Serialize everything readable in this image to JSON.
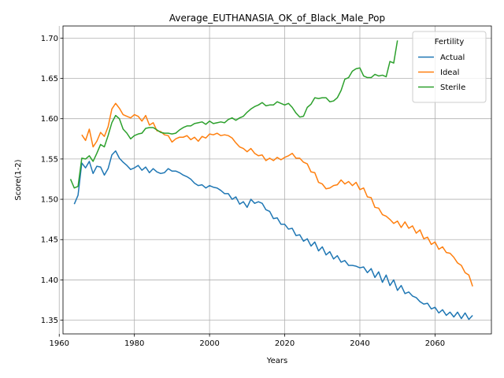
{
  "chart_data": {
    "type": "line",
    "title": "Average_EUTHANASIA_OK_of_Black_Male_Pop",
    "xlabel": "Years",
    "ylabel": "Score(1-2)",
    "xlim": [
      1961,
      2075
    ],
    "ylim": [
      1.333,
      1.715
    ],
    "xticks": [
      1960,
      1980,
      2000,
      2020,
      2040,
      2060
    ],
    "yticks": [
      1.35,
      1.4,
      1.45,
      1.5,
      1.55,
      1.6,
      1.65,
      1.7
    ],
    "grid": true,
    "legend": {
      "title": "Fertility",
      "placement": "top-right"
    },
    "series": [
      {
        "name": "Actual",
        "color": "#1f77b4",
        "x": [
          1964,
          1965,
          1966,
          1967,
          1968,
          1969,
          1970,
          1971,
          1972,
          1973,
          1974,
          1975,
          1976,
          1977,
          1978,
          1979,
          1980,
          1981,
          1982,
          1983,
          1984,
          1985,
          1986,
          1987,
          1988,
          1989,
          1990,
          1991,
          1992,
          1993,
          1994,
          1995,
          1996,
          1997,
          1998,
          1999,
          2000,
          2001,
          2002,
          2003,
          2004,
          2005,
          2006,
          2007,
          2008,
          2009,
          2010,
          2011,
          2012,
          2013,
          2014,
          2015,
          2016,
          2017,
          2018,
          2019,
          2020,
          2021,
          2022,
          2023,
          2024,
          2025,
          2026,
          2027,
          2028,
          2029,
          2030,
          2031,
          2032,
          2033,
          2034,
          2035,
          2036,
          2037,
          2038,
          2039,
          2040,
          2041,
          2042,
          2043,
          2044,
          2045,
          2046,
          2047,
          2048,
          2049,
          2050,
          2051,
          2052,
          2053,
          2054,
          2055,
          2056,
          2057,
          2058,
          2059,
          2060,
          2061,
          2062,
          2063,
          2064,
          2065,
          2066,
          2067,
          2068,
          2069,
          2070
        ],
        "values": [
          1.494,
          1.505,
          1.545,
          1.539,
          1.547,
          1.532,
          1.541,
          1.54,
          1.53,
          1.538,
          1.555,
          1.56,
          1.551,
          1.546,
          1.542,
          1.537,
          1.539,
          1.542,
          1.536,
          1.54,
          1.533,
          1.538,
          1.534,
          1.532,
          1.533,
          1.538,
          1.535,
          1.535,
          1.533,
          1.53,
          1.528,
          1.525,
          1.52,
          1.517,
          1.518,
          1.514,
          1.517,
          1.515,
          1.514,
          1.511,
          1.507,
          1.507,
          1.5,
          1.503,
          1.494,
          1.497,
          1.49,
          1.5,
          1.495,
          1.497,
          1.495,
          1.487,
          1.485,
          1.476,
          1.477,
          1.469,
          1.469,
          1.463,
          1.464,
          1.455,
          1.456,
          1.448,
          1.451,
          1.442,
          1.447,
          1.436,
          1.441,
          1.431,
          1.435,
          1.426,
          1.43,
          1.422,
          1.424,
          1.418,
          1.418,
          1.417,
          1.415,
          1.416,
          1.409,
          1.414,
          1.403,
          1.41,
          1.397,
          1.406,
          1.393,
          1.4,
          1.387,
          1.393,
          1.383,
          1.385,
          1.38,
          1.378,
          1.373,
          1.37,
          1.371,
          1.364,
          1.366,
          1.359,
          1.363,
          1.356,
          1.36,
          1.354,
          1.36,
          1.352,
          1.359,
          1.351,
          1.356
        ]
      },
      {
        "name": "Ideal",
        "color": "#ff7f0e",
        "x": [
          1966,
          1967,
          1968,
          1969,
          1970,
          1971,
          1972,
          1973,
          1974,
          1975,
          1976,
          1977,
          1978,
          1979,
          1980,
          1981,
          1982,
          1983,
          1984,
          1985,
          1986,
          1987,
          1988,
          1989,
          1990,
          1991,
          1992,
          1993,
          1994,
          1995,
          1996,
          1997,
          1998,
          1999,
          2000,
          2001,
          2002,
          2003,
          2004,
          2005,
          2006,
          2007,
          2008,
          2009,
          2010,
          2011,
          2012,
          2013,
          2014,
          2015,
          2016,
          2017,
          2018,
          2019,
          2020,
          2021,
          2022,
          2023,
          2024,
          2025,
          2026,
          2027,
          2028,
          2029,
          2030,
          2031,
          2032,
          2033,
          2034,
          2035,
          2036,
          2037,
          2038,
          2039,
          2040,
          2041,
          2042,
          2043,
          2044,
          2045,
          2046,
          2047,
          2048,
          2049,
          2050,
          2051,
          2052,
          2053,
          2054,
          2055,
          2056,
          2057,
          2058,
          2059,
          2060,
          2061,
          2062,
          2063,
          2064,
          2065,
          2066,
          2067,
          2068,
          2069,
          2070
        ],
        "values": [
          1.58,
          1.573,
          1.587,
          1.565,
          1.572,
          1.583,
          1.578,
          1.59,
          1.612,
          1.619,
          1.613,
          1.605,
          1.603,
          1.601,
          1.605,
          1.603,
          1.597,
          1.604,
          1.592,
          1.595,
          1.585,
          1.584,
          1.58,
          1.579,
          1.571,
          1.575,
          1.577,
          1.577,
          1.579,
          1.574,
          1.577,
          1.572,
          1.578,
          1.576,
          1.581,
          1.58,
          1.582,
          1.579,
          1.58,
          1.579,
          1.576,
          1.57,
          1.565,
          1.563,
          1.559,
          1.563,
          1.557,
          1.554,
          1.555,
          1.548,
          1.551,
          1.548,
          1.552,
          1.549,
          1.552,
          1.554,
          1.557,
          1.551,
          1.551,
          1.546,
          1.544,
          1.534,
          1.533,
          1.521,
          1.519,
          1.513,
          1.514,
          1.517,
          1.518,
          1.524,
          1.519,
          1.522,
          1.517,
          1.521,
          1.512,
          1.514,
          1.503,
          1.502,
          1.49,
          1.489,
          1.481,
          1.479,
          1.475,
          1.47,
          1.473,
          1.465,
          1.472,
          1.464,
          1.467,
          1.458,
          1.462,
          1.451,
          1.453,
          1.444,
          1.447,
          1.438,
          1.441,
          1.434,
          1.433,
          1.428,
          1.421,
          1.418,
          1.409,
          1.406,
          1.392
        ]
      },
      {
        "name": "Sterile",
        "color": "#2ca02c",
        "x": [
          1963,
          1964,
          1965,
          1966,
          1967,
          1968,
          1969,
          1970,
          1971,
          1972,
          1973,
          1974,
          1975,
          1976,
          1977,
          1978,
          1979,
          1980,
          1981,
          1982,
          1983,
          1984,
          1985,
          1986,
          1987,
          1988,
          1989,
          1990,
          1991,
          1992,
          1993,
          1994,
          1995,
          1996,
          1997,
          1998,
          1999,
          2000,
          2001,
          2002,
          2003,
          2004,
          2005,
          2006,
          2007,
          2008,
          2009,
          2010,
          2011,
          2012,
          2013,
          2014,
          2015,
          2016,
          2017,
          2018,
          2019,
          2020,
          2021,
          2022,
          2023,
          2024,
          2025,
          2026,
          2027,
          2028,
          2029,
          2030,
          2031,
          2032,
          2033,
          2034,
          2035,
          2036,
          2037,
          2038,
          2039,
          2040,
          2041,
          2042,
          2043,
          2044,
          2045,
          2046,
          2047,
          2048,
          2049,
          2050
        ],
        "values": [
          1.525,
          1.514,
          1.516,
          1.551,
          1.55,
          1.554,
          1.547,
          1.557,
          1.568,
          1.565,
          1.579,
          1.595,
          1.604,
          1.6,
          1.587,
          1.582,
          1.575,
          1.579,
          1.581,
          1.582,
          1.588,
          1.589,
          1.589,
          1.586,
          1.583,
          1.582,
          1.582,
          1.581,
          1.582,
          1.586,
          1.589,
          1.591,
          1.591,
          1.594,
          1.595,
          1.596,
          1.593,
          1.597,
          1.594,
          1.595,
          1.596,
          1.595,
          1.599,
          1.601,
          1.598,
          1.601,
          1.603,
          1.608,
          1.612,
          1.615,
          1.617,
          1.62,
          1.616,
          1.617,
          1.617,
          1.621,
          1.619,
          1.617,
          1.619,
          1.614,
          1.607,
          1.602,
          1.603,
          1.614,
          1.618,
          1.626,
          1.625,
          1.626,
          1.626,
          1.621,
          1.622,
          1.626,
          1.635,
          1.649,
          1.651,
          1.659,
          1.662,
          1.663,
          1.653,
          1.651,
          1.651,
          1.655,
          1.653,
          1.654,
          1.652,
          1.671,
          1.669,
          1.697
        ]
      }
    ]
  }
}
